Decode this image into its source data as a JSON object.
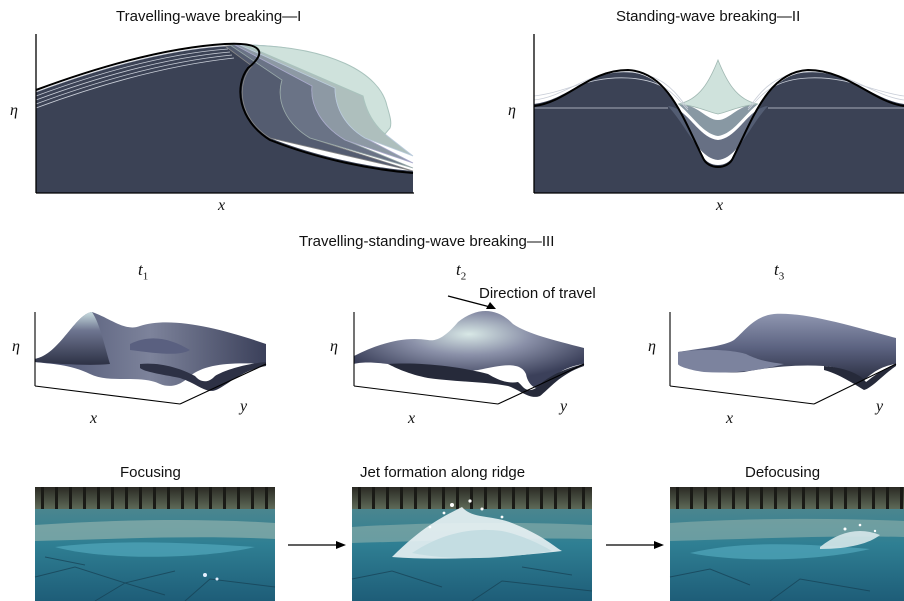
{
  "panel1": {
    "title": "Travelling-wave breaking—I",
    "ylabel": "η",
    "xlabel": "x"
  },
  "panel2": {
    "title": "Standing-wave breaking—II",
    "ylabel": "η",
    "xlabel": "x"
  },
  "panel3": {
    "title": "Travelling-standing-wave breaking—III",
    "direction_label": "Direction of travel",
    "snapshots": [
      {
        "t_base": "t",
        "t_sub": "1",
        "ylabel": "η",
        "xlabel": "x",
        "zlabel": "y"
      },
      {
        "t_base": "t",
        "t_sub": "2",
        "ylabel": "η",
        "xlabel": "x",
        "zlabel": "y"
      },
      {
        "t_base": "t",
        "t_sub": "3",
        "ylabel": "η",
        "xlabel": "x",
        "zlabel": "y"
      }
    ]
  },
  "photos": [
    {
      "caption": "Focusing"
    },
    {
      "caption": "Jet formation along ridge"
    },
    {
      "caption": "Defocusing"
    }
  ],
  "colors": {
    "fill_dark": "#3b4255",
    "line": "#111111",
    "crest_light": "#cfe2dc",
    "water": "#2f7f93"
  }
}
